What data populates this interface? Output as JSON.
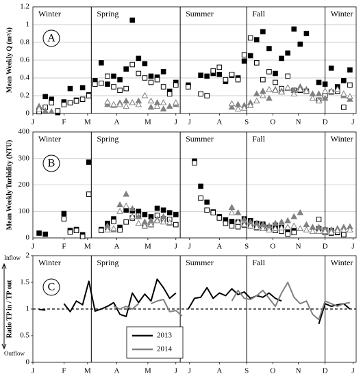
{
  "chart_data": [
    {
      "type": "scatter",
      "panel_label": "A",
      "ylabel": "Mean Weekly Q (m³/s)",
      "ylim": [
        0,
        1.2
      ],
      "yticks": [
        0,
        0.2,
        0.4,
        0.6,
        0.8,
        1,
        1.2
      ],
      "grid": true,
      "xlim": [
        0,
        52
      ],
      "xticks": [
        {
          "value": 0,
          "label": "J"
        },
        {
          "value": 5,
          "label": "F"
        },
        {
          "value": 8.8,
          "label": "M"
        },
        {
          "value": 13.5,
          "label": "A"
        },
        {
          "value": 18.5,
          "label": "M"
        },
        {
          "value": 23,
          "label": "J"
        },
        {
          "value": 25.2,
          "label": "J"
        },
        {
          "value": 30,
          "label": "A"
        },
        {
          "value": 34.4,
          "label": "S"
        },
        {
          "value": 38.6,
          "label": "O"
        },
        {
          "value": 42.7,
          "label": "N"
        },
        {
          "value": 47,
          "label": "D"
        },
        {
          "value": 51.5,
          "label": "J"
        }
      ],
      "seasons": [
        "Winter",
        "Spring",
        "Summer",
        "Fall",
        "Winter"
      ],
      "season_breaks": [
        9.4,
        23.7,
        34.4,
        47
      ],
      "x": [
        1,
        2,
        3,
        4,
        5,
        6,
        7,
        8,
        9,
        10,
        11,
        12,
        13,
        14,
        15,
        16,
        17,
        18,
        19,
        20,
        21,
        22,
        23,
        24,
        25,
        26,
        27,
        28,
        29,
        30,
        31,
        32,
        33,
        34,
        35,
        36,
        37,
        38,
        39,
        40,
        41,
        42,
        43,
        44,
        45,
        46,
        47,
        48,
        49,
        50,
        51
      ],
      "series": [
        {
          "color": "#000000",
          "marker": "square",
          "filled": true,
          "values": [
            0.03,
            0.19,
            0.16,
            0.01,
            0.13,
            0.28,
            0.15,
            0.29,
            0.21,
            0.37,
            0.57,
            0.33,
            0.42,
            0.38,
            0.5,
            1.05,
            0.62,
            0.56,
            0.42,
            0.41,
            0.47,
            0.25,
            0.35,
            null,
            0.32,
            null,
            0.43,
            0.42,
            0.45,
            0.44,
            0.36,
            0.43,
            0.4,
            0.59,
            0.65,
            0.83,
            0.92,
            0.73,
            0.45,
            0.62,
            0.68,
            0.95,
            0.78,
            0.9,
            null,
            0.35,
            0.33,
            0.51,
            0.3,
            0.37,
            0.49
          ]
        },
        {
          "color": "#000000",
          "marker": "square",
          "filled": false,
          "values": [
            0.02,
            0.07,
            0.12,
            0.03,
            0.1,
            0.12,
            0.14,
            0.16,
            0.2,
            0.33,
            0.34,
            0.42,
            0.3,
            0.26,
            0.28,
            0.55,
            0.45,
            0.4,
            0.35,
            0.38,
            0.3,
            0.22,
            0.32,
            null,
            0.3,
            null,
            0.22,
            0.2,
            0.48,
            0.52,
            0.38,
            0.44,
            0.38,
            0.66,
            0.85,
            0.57,
            0.38,
            0.47,
            0.35,
            0.28,
            0.42,
            0.26,
            0.26,
            0.25,
            null,
            0.15,
            0.2,
            0.24,
            0.25,
            0.07,
            0.32
          ]
        },
        {
          "color": "#808080",
          "marker": "triangle",
          "filled": true,
          "values": [
            0.08,
            0.03,
            0.02,
            null,
            null,
            null,
            null,
            null,
            null,
            null,
            null,
            0.1,
            0.09,
            0.12,
            0.14,
            0.12,
            0.14,
            null,
            0.07,
            0.12,
            0.05,
            0.08,
            0.1,
            null,
            null,
            null,
            null,
            null,
            null,
            null,
            null,
            0.07,
            0.1,
            0.09,
            0.12,
            0.22,
            0.25,
            0.17,
            0.27,
            0.25,
            0.28,
            0.26,
            0.3,
            0.27,
            0.22,
            0.22,
            0.17,
            0.24,
            0.27,
            0.2,
            0.16
          ]
        },
        {
          "color": "#808080",
          "marker": "triangle",
          "filled": false,
          "values": [
            0.05,
            null,
            null,
            null,
            null,
            null,
            null,
            null,
            null,
            null,
            null,
            0.13,
            0.1,
            0.1,
            0.08,
            0.12,
            0.1,
            0.2,
            0.14,
            0.08,
            0.12,
            null,
            0.12,
            null,
            null,
            null,
            null,
            null,
            null,
            null,
            null,
            0.11,
            0.05,
            0.06,
            0.09,
            0.14,
            0.2,
            0.27,
            0.26,
            0.24,
            0.29,
            0.22,
            0.27,
            0.25,
            0.17,
            0.14,
            0.25,
            0.25,
            0.27,
            0.22,
            0.19
          ]
        }
      ]
    },
    {
      "type": "scatter",
      "panel_label": "B",
      "ylabel": "Mean Weekly Turbidity  (NTU)",
      "ylim": [
        0,
        400
      ],
      "yticks": [
        0,
        100,
        200,
        300,
        400
      ],
      "grid": true,
      "xlim": [
        0,
        52
      ],
      "xticks": [
        {
          "value": 0,
          "label": "J"
        },
        {
          "value": 5,
          "label": "F"
        },
        {
          "value": 8.8,
          "label": "M"
        },
        {
          "value": 13.5,
          "label": "A"
        },
        {
          "value": 18.5,
          "label": "M"
        },
        {
          "value": 23,
          "label": "J"
        },
        {
          "value": 25.2,
          "label": "J"
        },
        {
          "value": 30,
          "label": "A"
        },
        {
          "value": 34.4,
          "label": "S"
        },
        {
          "value": 38.6,
          "label": "O"
        },
        {
          "value": 42.7,
          "label": "N"
        },
        {
          "value": 47,
          "label": "D"
        },
        {
          "value": 51.5,
          "label": "J"
        }
      ],
      "seasons": [
        "Winter",
        "Spring",
        "Summer",
        "Fall",
        "Winter"
      ],
      "season_breaks": [
        9.4,
        23.7,
        34.4,
        47
      ],
      "x": [
        1,
        2,
        3,
        4,
        5,
        6,
        7,
        8,
        9,
        10,
        11,
        12,
        13,
        14,
        15,
        16,
        17,
        18,
        19,
        20,
        21,
        22,
        23,
        24,
        25,
        26,
        27,
        28,
        29,
        30,
        31,
        32,
        33,
        34,
        35,
        36,
        37,
        38,
        39,
        40,
        41,
        42,
        43,
        44,
        45,
        46,
        47,
        48,
        49,
        50,
        51
      ],
      "series": [
        {
          "color": "#000000",
          "marker": "square",
          "filled": true,
          "values": [
            18,
            14,
            null,
            null,
            92,
            28,
            32,
            12,
            286,
            null,
            32,
            55,
            72,
            40,
            105,
            102,
            100,
            88,
            80,
            112,
            105,
            95,
            88,
            null,
            null,
            290,
            195,
            135,
            98,
            80,
            68,
            62,
            60,
            72,
            65,
            55,
            52,
            40,
            48,
            40,
            28,
            30,
            null,
            null,
            null,
            35,
            30,
            28,
            20,
            15,
            null
          ]
        },
        {
          "color": "#000000",
          "marker": "square",
          "filled": false,
          "values": [
            null,
            null,
            null,
            null,
            72,
            22,
            28,
            5,
            165,
            null,
            28,
            40,
            62,
            30,
            60,
            75,
            85,
            45,
            50,
            85,
            72,
            70,
            50,
            null,
            null,
            283,
            150,
            105,
            95,
            75,
            55,
            45,
            42,
            48,
            45,
            38,
            45,
            35,
            28,
            25,
            15,
            20,
            null,
            null,
            null,
            70,
            20,
            18,
            22,
            12,
            null
          ]
        },
        {
          "color": "#808080",
          "marker": "triangle",
          "filled": true,
          "values": [
            null,
            null,
            null,
            null,
            null,
            null,
            null,
            null,
            null,
            null,
            null,
            45,
            30,
            125,
            165,
            110,
            80,
            60,
            65,
            70,
            80,
            55,
            null,
            null,
            null,
            null,
            null,
            null,
            null,
            null,
            null,
            115,
            95,
            70,
            60,
            55,
            50,
            45,
            55,
            60,
            65,
            80,
            95,
            50,
            40,
            40,
            35,
            30,
            35,
            40,
            42
          ]
        },
        {
          "color": "#808080",
          "marker": "triangle",
          "filled": false,
          "values": [
            null,
            null,
            null,
            null,
            null,
            null,
            null,
            null,
            null,
            null,
            null,
            30,
            35,
            100,
            120,
            80,
            55,
            45,
            50,
            65,
            60,
            58,
            null,
            null,
            null,
            null,
            null,
            null,
            null,
            null,
            null,
            95,
            60,
            50,
            45,
            40,
            35,
            30,
            35,
            38,
            40,
            45,
            35,
            30,
            25,
            25,
            25,
            22,
            28,
            30,
            30
          ]
        }
      ]
    },
    {
      "type": "line",
      "panel_label": "C",
      "ylabel": "Ratio TP in / TP out",
      "annotations": [
        "Inflow",
        "Outflow"
      ],
      "ylim": [
        0,
        2
      ],
      "yticks": [
        0,
        0.5,
        1,
        1.5,
        2
      ],
      "grid": false,
      "reference_line": 1,
      "xlim": [
        0,
        52
      ],
      "xticks": [
        {
          "value": 0,
          "label": "J"
        },
        {
          "value": 5,
          "label": "F"
        },
        {
          "value": 8.8,
          "label": "M"
        },
        {
          "value": 13.5,
          "label": "A"
        },
        {
          "value": 18.5,
          "label": "M"
        },
        {
          "value": 23,
          "label": "J"
        },
        {
          "value": 25.2,
          "label": "J"
        },
        {
          "value": 30,
          "label": "A"
        },
        {
          "value": 34.4,
          "label": "S"
        },
        {
          "value": 38.6,
          "label": "O"
        },
        {
          "value": 42.7,
          "label": "N"
        },
        {
          "value": 47,
          "label": "D"
        },
        {
          "value": 51.5,
          "label": "J"
        }
      ],
      "seasons": [
        "Winter",
        "Spring",
        "Summer",
        "Fall",
        "Winter"
      ],
      "season_breaks": [
        9.4,
        23.7,
        34.4,
        47
      ],
      "legend": "bottom-center",
      "x": [
        1,
        2,
        3,
        4,
        5,
        6,
        7,
        8,
        9,
        10,
        11,
        12,
        13,
        14,
        15,
        16,
        17,
        18,
        19,
        20,
        21,
        22,
        23,
        24,
        25,
        26,
        27,
        28,
        29,
        30,
        31,
        32,
        33,
        34,
        35,
        36,
        37,
        38,
        39,
        40,
        41,
        42,
        43,
        44,
        45,
        46,
        47,
        48,
        49,
        50,
        51
      ],
      "series": [
        {
          "name": "2013",
          "color": "#000000",
          "values": [
            0.99,
            0.98,
            null,
            null,
            1.1,
            0.95,
            1.15,
            1.08,
            1.52,
            0.96,
            1.0,
            1.05,
            1.12,
            0.9,
            0.86,
            1.3,
            1.12,
            1.28,
            1.15,
            1.56,
            1.4,
            1.2,
            1.3,
            null,
            1.0,
            1.2,
            1.22,
            1.4,
            1.2,
            1.3,
            1.25,
            1.38,
            1.27,
            1.32,
            1.2,
            1.25,
            1.22,
            1.3,
            1.2,
            1.15,
            null,
            null,
            null,
            null,
            null,
            0.72,
            1.1,
            1.05,
            1.08,
            1.1,
            1.0
          ]
        },
        {
          "name": "2014",
          "color": "#808080",
          "values": [
            null,
            null,
            null,
            null,
            null,
            null,
            null,
            null,
            null,
            null,
            null,
            null,
            1.05,
            1.0,
            1.05,
            1.0,
            1.1,
            null,
            1.1,
            1.15,
            1.18,
            0.95,
            0.97,
            0.87,
            null,
            null,
            null,
            null,
            null,
            null,
            null,
            1.15,
            1.35,
            1.2,
            1.18,
            1.25,
            1.35,
            1.2,
            1.05,
            1.3,
            1.5,
            1.22,
            1.1,
            1.15,
            0.9,
            0.8,
            1.15,
            1.1,
            1.05,
            1.1,
            1.12
          ]
        }
      ]
    }
  ]
}
